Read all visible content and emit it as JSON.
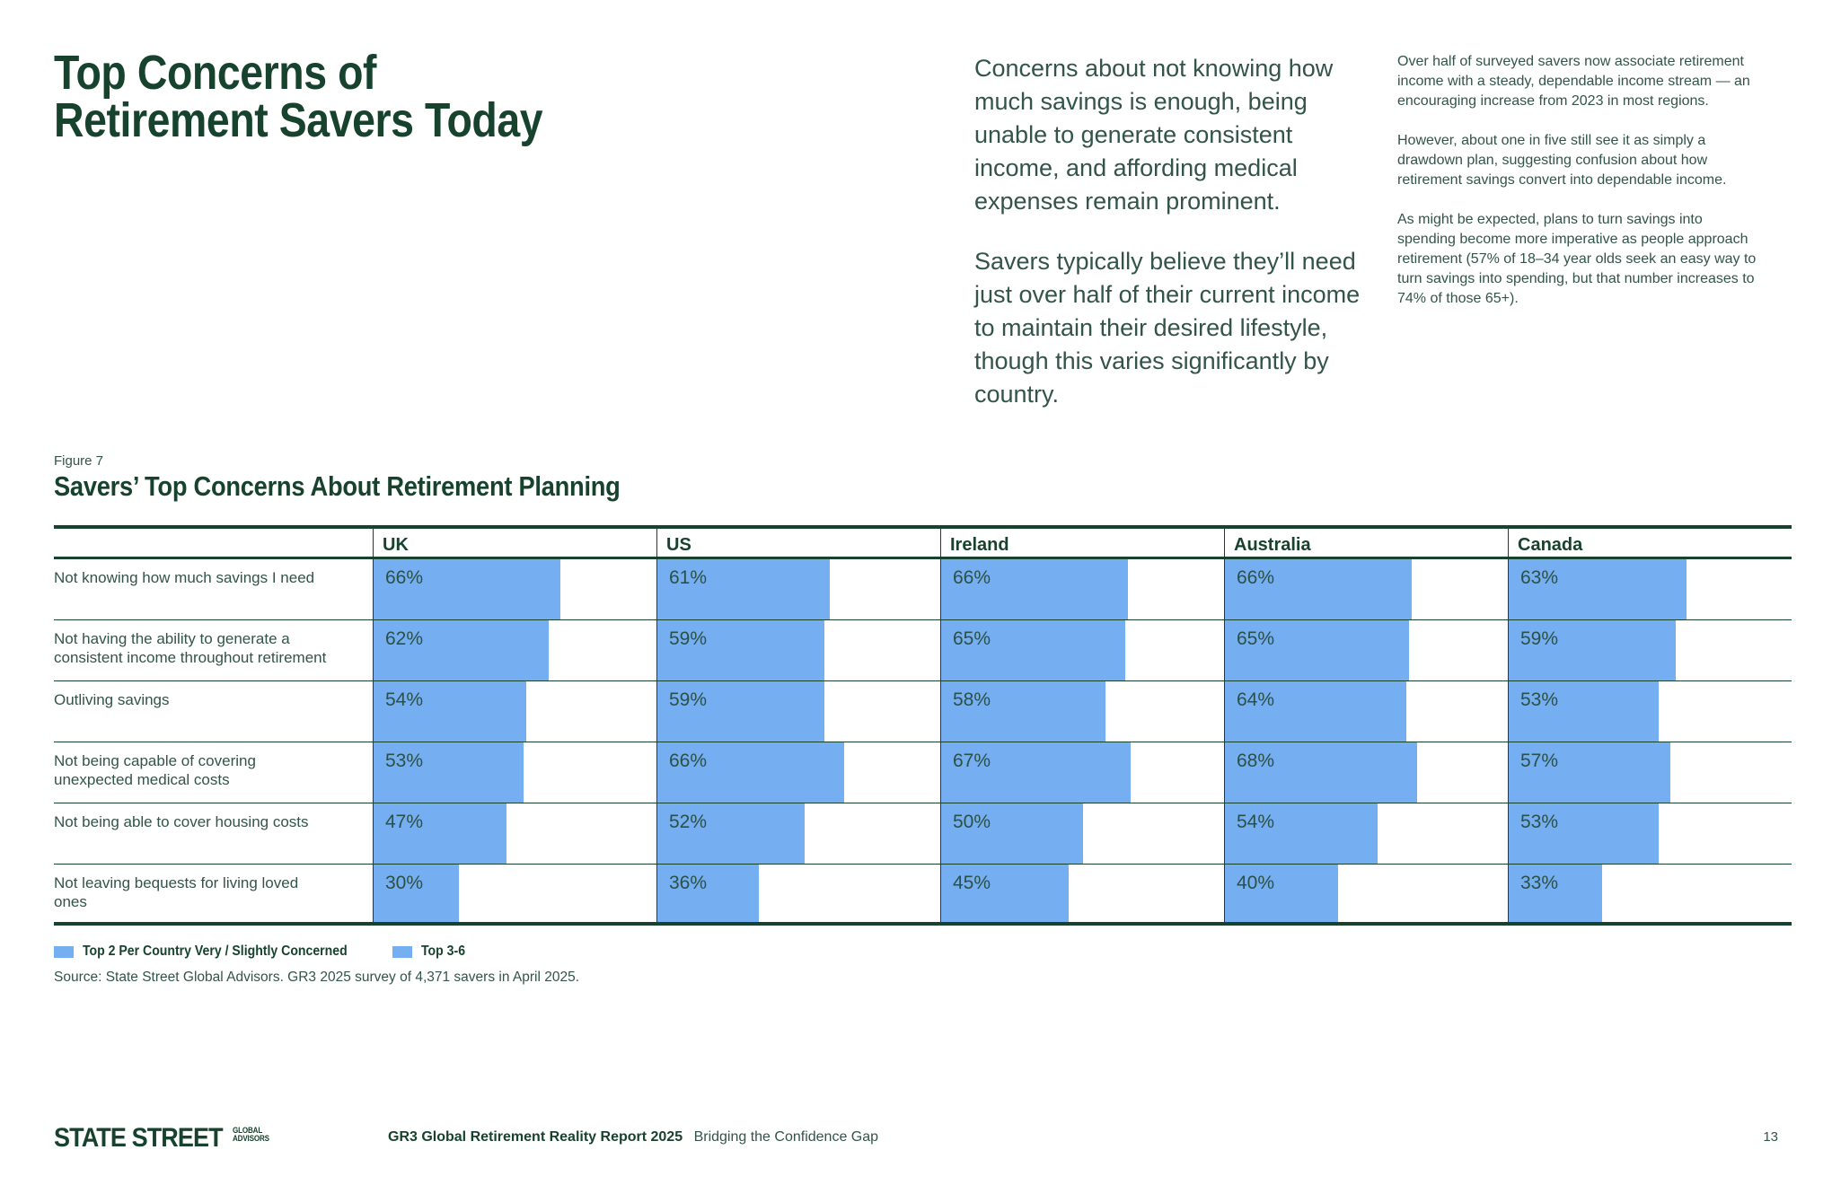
{
  "page": {
    "title_lines": [
      "Top Concerns of",
      "Retirement Savers Today"
    ],
    "intro": [
      "Concerns about not knowing how much savings is enough, being unable to generate consistent income, and affording medical expenses remain prominent.",
      "Savers typically believe they’ll need just over half of their current income to maintain their desired lifestyle, though this varies significantly by country."
    ],
    "sidebar": [
      "Over half of surveyed savers now associate retirement income with a steady, dependable income stream — an encouraging increase from 2023 in most regions.",
      "However, about one in five still see it as simply a drawdown plan, suggesting confusion about how retirement savings convert into dependable income.",
      "As might be expected, plans to turn savings into spending become more imperative as people approach retirement (57% of 18–34 year olds seek an easy way to turn savings into spending, but that number increases to 74% of those 65+)."
    ]
  },
  "figure": {
    "label": "Figure 7",
    "title": "Savers’ Top Concerns About Retirement Planning",
    "legend": [
      {
        "label": "Top 2 Per Country Very / Slightly Concerned",
        "color": "#75aff2"
      },
      {
        "label": "Top 3-6",
        "color": "#75aff2"
      }
    ],
    "source": "Source: State Street Global Advisors. GR3 2025 survey of 4,371 savers in April 2025."
  },
  "chart_data": {
    "type": "bar",
    "orientation": "horizontal",
    "title": "Savers’ Top Concerns About Retirement Planning",
    "unit": "%",
    "xlim": [
      0,
      100
    ],
    "categories": [
      "Not knowing how much savings I need",
      "Not having the ability to generate a consistent income throughout retirement",
      "Outliving savings",
      "Not being capable of covering unexpected medical costs",
      "Not being able to cover housing costs",
      "Not leaving bequests for living loved ones"
    ],
    "series": [
      {
        "name": "UK",
        "values": [
          66,
          62,
          54,
          53,
          47,
          30
        ]
      },
      {
        "name": "US",
        "values": [
          61,
          59,
          59,
          66,
          52,
          36
        ]
      },
      {
        "name": "Ireland",
        "values": [
          66,
          65,
          58,
          67,
          50,
          45
        ]
      },
      {
        "name": "Australia",
        "values": [
          66,
          65,
          64,
          68,
          54,
          40
        ]
      },
      {
        "name": "Canada",
        "values": [
          63,
          59,
          53,
          57,
          53,
          33
        ]
      }
    ],
    "bar_color": "#75aff2",
    "grid": false,
    "legend_position": "bottom"
  },
  "footer": {
    "logo_primary": "STATE STREET",
    "logo_secondary_lines": [
      "GLOBAL",
      "ADVISORS"
    ],
    "report_bold": "GR3 Global Retirement Reality Report 2025",
    "report_regular": "Bridging the Confidence Gap",
    "page_number": "13"
  },
  "colors": {
    "heading_green": "#17432e",
    "body_green": "#335449",
    "bar_blue": "#75aff2",
    "background": "#ffffff"
  }
}
